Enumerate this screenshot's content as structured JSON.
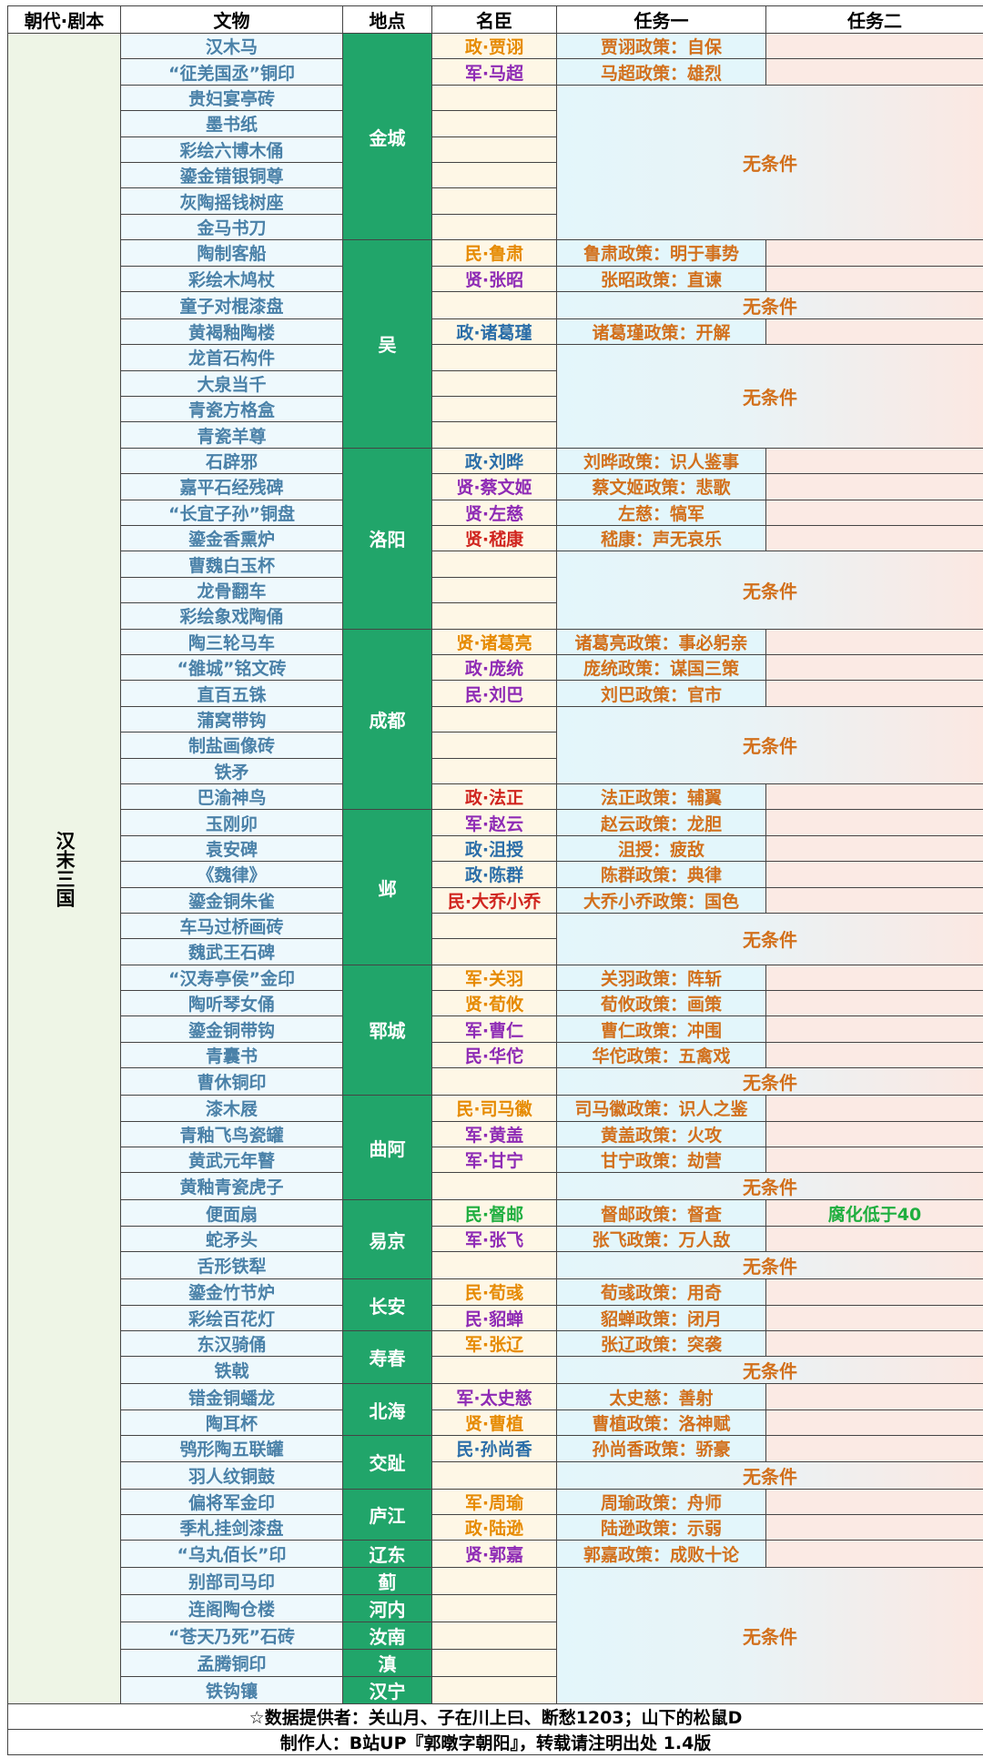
{
  "headers": [
    "朝代·剧本",
    "文物",
    "地点",
    "名臣",
    "任务一",
    "任务二"
  ],
  "dynasty": "汉末三国",
  "groups": [
    {
      "location": "金城",
      "rows": [
        {
          "relic": "汉木马",
          "minister": "政·贾诩",
          "mc": "#e68a00",
          "task1": "贾诩政策：自保",
          "task2": ""
        },
        {
          "relic": "“征羌国丞”铜印",
          "minister": "军·马超",
          "mc": "#8e2bb5",
          "task1": "马超政策：雄烈",
          "task2": ""
        },
        {
          "relic": "贵妇宴亭砖",
          "minister": "",
          "task1": null
        },
        {
          "relic": "墨书纸",
          "minister": "",
          "task1": null
        },
        {
          "relic": "彩绘六博木俑",
          "minister": "",
          "task1": null
        },
        {
          "relic": "鎏金错银铜尊",
          "minister": "",
          "task1": null
        },
        {
          "relic": "灰陶摇钱树座",
          "minister": "",
          "task1": null
        },
        {
          "relic": "金马书刀",
          "minister": "",
          "task1": null
        }
      ]
    },
    {
      "location": "吴",
      "rows": [
        {
          "relic": "陶制客船",
          "minister": "民·鲁肃",
          "mc": "#e68a00",
          "task1": "鲁肃政策：明于事势",
          "task2": ""
        },
        {
          "relic": "彩绘木鸠杖",
          "minister": "贤·张昭",
          "mc": "#8e2bb5",
          "task1": "张昭政策：直谏",
          "task2": ""
        },
        {
          "relic": "童子对棍漆盘",
          "minister": "",
          "task1": null
        },
        {
          "relic": "黄褐釉陶楼",
          "minister": "政·诸葛瑾",
          "mc": "#2b6ea8",
          "task1": "诸葛瑾政策：开解",
          "task2": ""
        },
        {
          "relic": "龙首石构件",
          "minister": "",
          "task1": null
        },
        {
          "relic": "大泉当千",
          "minister": "",
          "task1": null
        },
        {
          "relic": "青瓷方格盒",
          "minister": "",
          "task1": null
        },
        {
          "relic": "青瓷羊尊",
          "minister": "",
          "task1": null
        }
      ]
    },
    {
      "location": "洛阳",
      "rows": [
        {
          "relic": "石辟邪",
          "minister": "政·刘晔",
          "mc": "#2b6ea8",
          "task1": "刘晔政策：识人鉴事",
          "task2": ""
        },
        {
          "relic": "嘉平石经残碑",
          "minister": "贤·蔡文姬",
          "mc": "#8e2bb5",
          "task1": "蔡文姬政策：悲歌",
          "task2": ""
        },
        {
          "relic": "“长宜子孙”铜盘",
          "minister": "贤·左慈",
          "mc": "#8e2bb5",
          "task1": "左慈：犒军",
          "task2": ""
        },
        {
          "relic": "鎏金香熏炉",
          "minister": "贤·嵇康",
          "mc": "#d0251f",
          "task1": "嵇康：声无哀乐",
          "task2": ""
        },
        {
          "relic": "曹魏白玉杯",
          "minister": "",
          "task1": null
        },
        {
          "relic": "龙骨翻车",
          "minister": "",
          "task1": null
        },
        {
          "relic": "彩绘象戏陶俑",
          "minister": "",
          "task1": null
        }
      ]
    },
    {
      "location": "成都",
      "rows": [
        {
          "relic": "陶三轮马车",
          "minister": "贤·诸葛亮",
          "mc": "#e68a00",
          "task1": "诸葛亮政策：事必躬亲",
          "task2": ""
        },
        {
          "relic": "“雒城”铭文砖",
          "minister": "政·庞统",
          "mc": "#8e2bb5",
          "task1": "庞统政策：谋国三策",
          "task2": ""
        },
        {
          "relic": "直百五铢",
          "minister": "民·刘巴",
          "mc": "#8e2bb5",
          "task1": "刘巴政策：官市",
          "task2": ""
        },
        {
          "relic": "蒲窝带钩",
          "minister": "",
          "task1": null
        },
        {
          "relic": "制盐画像砖",
          "minister": "",
          "task1": null
        },
        {
          "relic": "铁矛",
          "minister": "",
          "task1": null
        },
        {
          "relic": "巴渝神鸟",
          "minister": "政·法正",
          "mc": "#d0251f",
          "task1": "法正政策：辅翼",
          "task2": ""
        }
      ]
    },
    {
      "location": "邺",
      "rows": [
        {
          "relic": "玉刚卯",
          "minister": "军·赵云",
          "mc": "#8e2bb5",
          "task1": "赵云政策：龙胆",
          "task2": ""
        },
        {
          "relic": "袁安碑",
          "minister": "政·沮授",
          "mc": "#2b6ea8",
          "task1": "沮授：疲敌",
          "task2": ""
        },
        {
          "relic": "《魏律》",
          "minister": "政·陈群",
          "mc": "#2b6ea8",
          "task1": "陈群政策：典律",
          "task2": ""
        },
        {
          "relic": "鎏金铜朱雀",
          "minister": "民·大乔小乔",
          "mc": "#d0251f",
          "task1": "大乔小乔政策：国色",
          "task2": ""
        },
        {
          "relic": "车马过桥画砖",
          "minister": "",
          "task1": null
        },
        {
          "relic": "魏武王石碑",
          "minister": "",
          "task1": null
        }
      ]
    },
    {
      "location": "郓城",
      "rows": [
        {
          "relic": "“汉寿亭侯”金印",
          "minister": "军·关羽",
          "mc": "#e68a00",
          "task1": "关羽政策：阵斩",
          "task2": ""
        },
        {
          "relic": "陶听琴女俑",
          "minister": "贤·荀攸",
          "mc": "#e68a00",
          "task1": "荀攸政策：画策",
          "task2": ""
        },
        {
          "relic": "鎏金铜带钩",
          "minister": "军·曹仁",
          "mc": "#8e2bb5",
          "task1": "曹仁政策：冲围",
          "task2": ""
        },
        {
          "relic": "青囊书",
          "minister": "民·华佗",
          "mc": "#8e2bb5",
          "task1": "华佗政策：五禽戏",
          "task2": ""
        },
        {
          "relic": "曹休铜印",
          "minister": "",
          "task1": null
        }
      ]
    },
    {
      "location": "曲阿",
      "rows": [
        {
          "relic": "漆木屐",
          "minister": "民·司马徽",
          "mc": "#e68a00",
          "task1": "司马徽政策：识人之鉴",
          "task2": ""
        },
        {
          "relic": "青釉飞鸟瓷罐",
          "minister": "军·黄盖",
          "mc": "#8e2bb5",
          "task1": "黄盖政策：火攻",
          "task2": ""
        },
        {
          "relic": "黄武元年瞽",
          "minister": "军·甘宁",
          "mc": "#8e2bb5",
          "task1": "甘宁政策：劫营",
          "task2": ""
        },
        {
          "relic": "黄釉青瓷虎子",
          "minister": "",
          "task1": null
        }
      ]
    },
    {
      "location": "易京",
      "rows": [
        {
          "relic": "便面扇",
          "minister": "民·督邮",
          "mc": "#1fae3f",
          "task1": "督邮政策：督查",
          "task2": "腐化低于40"
        },
        {
          "relic": "蛇矛头",
          "minister": "军·张飞",
          "mc": "#8e2bb5",
          "task1": "张飞政策：万人敌",
          "task2": ""
        },
        {
          "relic": "舌形铁犁",
          "minister": "",
          "task1": null
        }
      ]
    },
    {
      "location": "长安",
      "rows": [
        {
          "relic": "鎏金竹节炉",
          "minister": "民·荀彧",
          "mc": "#e68a00",
          "task1": "荀彧政策：用奇",
          "task2": ""
        },
        {
          "relic": "彩绘百花灯",
          "minister": "民·貂蝉",
          "mc": "#8e2bb5",
          "task1": "貂蝉政策：闭月",
          "task2": ""
        }
      ]
    },
    {
      "location": "寿春",
      "rows": [
        {
          "relic": "东汉骑俑",
          "minister": "军·张辽",
          "mc": "#e68a00",
          "task1": "张辽政策：突袭",
          "task2": ""
        },
        {
          "relic": "铁戟",
          "minister": "",
          "task1": null
        }
      ]
    },
    {
      "location": "北海",
      "rows": [
        {
          "relic": "错金铜蟠龙",
          "minister": "军·太史慈",
          "mc": "#8e2bb5",
          "task1": "太史慈：善射",
          "task2": ""
        },
        {
          "relic": "陶耳杯",
          "minister": "贤·曹植",
          "mc": "#e68a00",
          "task1": "曹植政策：洛神赋",
          "task2": ""
        }
      ]
    },
    {
      "location": "交趾",
      "rows": [
        {
          "relic": "鸮形陶五联罐",
          "minister": "民·孙尚香",
          "mc": "#2b6ea8",
          "task1": "孙尚香政策：骄豪",
          "task2": ""
        },
        {
          "relic": "羽人纹铜鼓",
          "minister": "",
          "task1": null
        }
      ]
    },
    {
      "location": "庐江",
      "rows": [
        {
          "relic": "偏将军金印",
          "minister": "军·周瑜",
          "mc": "#e68a00",
          "task1": "周瑜政策：舟师",
          "task2": ""
        },
        {
          "relic": "季札挂剑漆盘",
          "minister": "政·陆逊",
          "mc": "#e68a00",
          "task1": "陆逊政策：示弱",
          "task2": ""
        }
      ]
    },
    {
      "location": "辽东",
      "rows": [
        {
          "relic": "“乌丸佰长”印",
          "minister": "贤·郭嘉",
          "mc": "#8e2bb5",
          "task1": "郭嘉政策：成败十论",
          "task2": ""
        }
      ]
    },
    {
      "location": "蓟",
      "rows": [
        {
          "relic": "别部司马印",
          "minister": "",
          "task1": null
        }
      ]
    },
    {
      "location": "河内",
      "rows": [
        {
          "relic": "连阁陶仓楼",
          "minister": "",
          "task1": null
        }
      ]
    },
    {
      "location": "汝南",
      "rows": [
        {
          "relic": "“苍天乃死”石砖",
          "minister": "",
          "task1": null
        }
      ]
    },
    {
      "location": "滇",
      "rows": [
        {
          "relic": "孟腾铜印",
          "minister": "",
          "task1": null
        }
      ]
    },
    {
      "location": "汉宁",
      "rows": [
        {
          "relic": "铁钩镶",
          "minister": "",
          "task1": null
        }
      ]
    }
  ],
  "no_condition": "无条件",
  "footer": {
    "credits": "☆数据提供者：关山月、子在川上曰、断愁1203；山下的松鼠D",
    "author": "制作人：B站UP『郭暾字朝阳』，转载请注明出处 1.4版"
  }
}
